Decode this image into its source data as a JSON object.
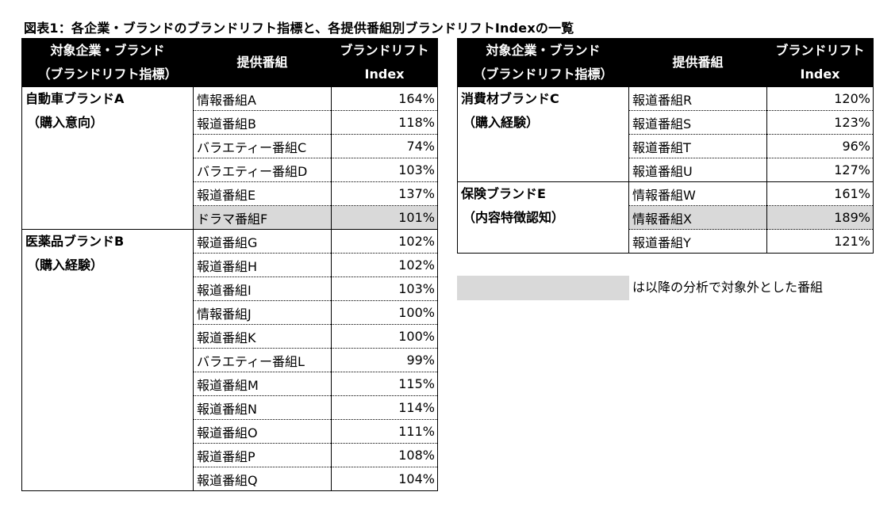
{
  "title": "図表1：各企業・ブランドのブランドリフト指標と、各提供番組別ブランドリフトIndexの一覧",
  "headers": {
    "brand_line1": "対象企業・ブランド",
    "brand_line2": "（ブランドリフト指標）",
    "program": "提供番組",
    "index_line1": "ブランドリフト",
    "index_line2": "Index"
  },
  "left_groups": [
    {
      "brand": "自動車ブランドA",
      "metric": "（購入意向）",
      "rows": [
        {
          "program": "情報番組A",
          "index": "164%"
        },
        {
          "program": "報道番組B",
          "index": "118%"
        },
        {
          "program": "バラエティー番組C",
          "index": "74%"
        },
        {
          "program": "バラエティー番組D",
          "index": "103%"
        },
        {
          "program": "報道番組E",
          "index": "137%"
        },
        {
          "program": "ドラマ番組F",
          "index": "101%",
          "excluded": true
        }
      ]
    },
    {
      "brand": "医薬品ブランドB",
      "metric": "（購入経験）",
      "rows": [
        {
          "program": "報道番組G",
          "index": "102%"
        },
        {
          "program": "報道番組H",
          "index": "102%"
        },
        {
          "program": "報道番組I",
          "index": "103%"
        },
        {
          "program": "情報番組J",
          "index": "100%"
        },
        {
          "program": "報道番組K",
          "index": "100%"
        },
        {
          "program": "バラエティー番組L",
          "index": "99%"
        },
        {
          "program": "報道番組M",
          "index": "115%"
        },
        {
          "program": "報道番組N",
          "index": "114%"
        },
        {
          "program": "報道番組O",
          "index": "111%"
        },
        {
          "program": "報道番組P",
          "index": "108%"
        },
        {
          "program": "報道番組Q",
          "index": "104%"
        }
      ]
    }
  ],
  "right_groups": [
    {
      "brand": "消費材ブランドC",
      "metric": "（購入経験）",
      "rows": [
        {
          "program": "報道番組R",
          "index": "120%"
        },
        {
          "program": "報道番組S",
          "index": "123%"
        },
        {
          "program": "報道番組T",
          "index": "96%"
        },
        {
          "program": "報道番組U",
          "index": "127%"
        }
      ]
    },
    {
      "brand": "保険ブランドE",
      "metric": "（内容特徴認知）",
      "rows": [
        {
          "program": "情報番組W",
          "index": "161%"
        },
        {
          "program": "情報番組X",
          "index": "189%",
          "excluded": true
        },
        {
          "program": "報道番組Y",
          "index": "121%"
        }
      ]
    }
  ],
  "legend": {
    "text": "は以降の分析で対象外とした番組",
    "swatch_color": "#d9d9d9"
  }
}
